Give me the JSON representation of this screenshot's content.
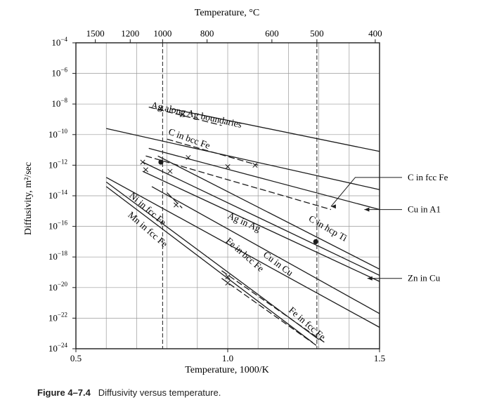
{
  "chart_data": {
    "type": "line",
    "xlabel_bottom": "Temperature, 1000/K",
    "xlabel_top": "Temperature, °C",
    "ylabel": "Diffusivity, m²/sec",
    "xlim": [
      0.5,
      1.5
    ],
    "ylim_log10": [
      -24,
      -4
    ],
    "y_scale": "log",
    "bottom_ticks": [
      {
        "value": 0.5,
        "label": "0.5"
      },
      {
        "value": 1.0,
        "label": "1.0"
      },
      {
        "value": 1.5,
        "label": "1.5"
      }
    ],
    "top_ticks": [
      {
        "celsius": 1500,
        "label": "1500"
      },
      {
        "celsius": 1200,
        "label": "1200"
      },
      {
        "celsius": 1000,
        "label": "1000"
      },
      {
        "celsius": 800,
        "label": "800"
      },
      {
        "celsius": 600,
        "label": "600"
      },
      {
        "celsius": 500,
        "label": "500"
      },
      {
        "celsius": 400,
        "label": "400"
      }
    ],
    "y_ticks": [
      {
        "exp": -4,
        "label": "10",
        "sup": "−4"
      },
      {
        "exp": -6,
        "label": "10",
        "sup": "−6"
      },
      {
        "exp": -8,
        "label": "10",
        "sup": "−8"
      },
      {
        "exp": -10,
        "label": "10",
        "sup": "−10"
      },
      {
        "exp": -12,
        "label": "10",
        "sup": "−12"
      },
      {
        "exp": -14,
        "label": "10",
        "sup": "−14"
      },
      {
        "exp": -16,
        "label": "10",
        "sup": "−16"
      },
      {
        "exp": -18,
        "label": "10",
        "sup": "−18"
      },
      {
        "exp": -20,
        "label": "10",
        "sup": "−20"
      },
      {
        "exp": -22,
        "label": "10",
        "sup": "−22"
      },
      {
        "exp": -24,
        "label": "10",
        "sup": "−24"
      }
    ],
    "reference_lines_celsius": [
      1000,
      500
    ],
    "grid": true,
    "series": [
      {
        "name": "Ag along Ag boundaries",
        "style": "solid",
        "x": [
          0.81,
          1.5
        ],
        "log10D": [
          -8.3,
          -11.1
        ]
      },
      {
        "name": "Ag along Ag boundaries",
        "style": "dashed",
        "x": [
          0.74,
          0.98
        ],
        "log10D": [
          -8.2,
          -9.4
        ]
      },
      {
        "name": "C in bcc Fe",
        "style": "dashed",
        "x": [
          0.8,
          1.1
        ],
        "log10D": [
          -10.3,
          -12.0
        ]
      },
      {
        "name": "C in bcc Fe",
        "style": "solid",
        "x": [
          0.6,
          1.5
        ],
        "log10D": [
          -9.6,
          -13.6
        ]
      },
      {
        "name": "C in fcc Fe",
        "style": "dashed",
        "x": [
          0.73,
          1.34
        ],
        "log10D": [
          -11.4,
          -14.9
        ]
      },
      {
        "name": "Cu in A1",
        "style": "solid",
        "x": [
          0.74,
          1.5
        ],
        "log10D": [
          -10.9,
          -14.9
        ]
      },
      {
        "name": "C in hcp Ti",
        "style": "solid",
        "x": [
          0.77,
          1.5
        ],
        "log10D": [
          -11.4,
          -18.8
        ]
      },
      {
        "name": "Ag in Ag",
        "style": "solid",
        "x": [
          0.72,
          1.5
        ],
        "log10D": [
          -11.8,
          -19.2
        ]
      },
      {
        "name": "Zn in Cu",
        "style": "solid",
        "x": [
          0.72,
          1.5
        ],
        "log10D": [
          -12.4,
          -19.6
        ]
      },
      {
        "name": "Cu in Cu",
        "style": "solid",
        "x": [
          0.75,
          1.5
        ],
        "log10D": [
          -13.4,
          -21.7
        ]
      },
      {
        "name": "Fe in bcc Fe",
        "style": "dashed",
        "x": [
          0.8,
          0.85
        ],
        "log10D": [
          -13.8,
          -14.8
        ]
      },
      {
        "name": "Fe in bcc Fe",
        "style": "solid",
        "x": [
          0.6,
          1.5
        ],
        "log10D": [
          -12.8,
          -22.6
        ]
      },
      {
        "name": "Fe in fcc Fe",
        "style": "dashed",
        "x": [
          0.98,
          1.32
        ],
        "log10D": [
          -18.9,
          -23.6
        ]
      },
      {
        "name": "Fe in fcc Fe",
        "style": "dashed",
        "x": [
          0.98,
          1.3
        ],
        "log10D": [
          -19.4,
          -23.9
        ]
      },
      {
        "name": "Ni in fcc Fe",
        "style": "solid",
        "x": [
          0.6,
          1.3
        ],
        "log10D": [
          -13.1,
          -23.4
        ]
      },
      {
        "name": "Mn in fcc Fe",
        "style": "solid",
        "x": [
          0.6,
          1.28
        ],
        "log10D": [
          -13.4,
          -23.6
        ]
      }
    ],
    "markers": [
      {
        "shape": "x",
        "x": 0.78,
        "log10D": [
          -8.3
        ]
      },
      {
        "shape": "x",
        "x": 0.85,
        "log10D": [
          -8.7
        ]
      },
      {
        "shape": "x",
        "x": 0.72,
        "log10D": [
          -11.8
        ]
      },
      {
        "shape": "x",
        "x": 0.73,
        "log10D": [
          -12.3
        ]
      },
      {
        "shape": "x",
        "x": 0.81,
        "log10D": [
          -12.4
        ]
      },
      {
        "shape": "x",
        "x": 0.87,
        "log10D": [
          -11.5
        ]
      },
      {
        "shape": "x",
        "x": 0.83,
        "log10D": [
          -14.6
        ]
      },
      {
        "shape": "x",
        "x": 1.0,
        "log10D": [
          -12.1
        ]
      },
      {
        "shape": "x",
        "x": 1.09,
        "log10D": [
          -12.0
        ]
      },
      {
        "shape": "x",
        "x": 1.0,
        "log10D": [
          -19.3,
          -19.7
        ]
      },
      {
        "shape": "dot",
        "x": 0.78,
        "log10D": [
          -11.8
        ]
      },
      {
        "shape": "dot",
        "x": 1.29,
        "log10D": [
          -17.0
        ]
      }
    ],
    "inline_labels": [
      {
        "text": "Ag along Ag boundaries",
        "x": 0.895,
        "log10D": [
          -8.9
        ],
        "deg": 12.5
      },
      {
        "text": "C in bcc Fe",
        "x": 0.87,
        "log10D": [
          -10.45
        ],
        "deg": 20
      },
      {
        "text": "Ag in Ag",
        "x": 1.05,
        "log10D": [
          -15.9
        ],
        "deg": 24
      },
      {
        "text": "C in hcp Ti",
        "x": 1.325,
        "log10D": [
          -16.3
        ],
        "deg": 30
      },
      {
        "text": "Cu in Cu",
        "x": 1.16,
        "log10D": [
          -18.6
        ],
        "deg": 37
      },
      {
        "text": "Fe in bcc Fe",
        "x": 1.05,
        "log10D": [
          -18.0
        ],
        "deg": 41
      },
      {
        "text": "Ni in fcc Fe",
        "x": 0.73,
        "log10D": [
          -15.0
        ],
        "deg": 41
      },
      {
        "text": "Mn in fcc Fe",
        "x": 0.73,
        "log10D": [
          -16.35
        ],
        "deg": 41
      },
      {
        "text": "Fe in fcc Fe",
        "x": 1.255,
        "log10D": [
          -22.5
        ],
        "deg": 41
      }
    ],
    "callouts": [
      {
        "text": "C in fcc Fe",
        "from_x": 1.34,
        "from_log10D": [
          -14.7
        ],
        "via_x": 1.42,
        "via_log10D": [
          -12.8
        ]
      },
      {
        "text": "Cu in A1",
        "from_x": 1.45,
        "from_log10D": [
          -14.9
        ],
        "via_x": 1.45,
        "via_log10D": [
          -14.9
        ]
      },
      {
        "text": "Zn in Cu",
        "from_x": 1.46,
        "from_log10D": [
          -19.4
        ],
        "via_x": 1.46,
        "via_log10D": [
          -19.4
        ]
      }
    ]
  },
  "caption": {
    "label": "Figure 4–7.4",
    "text": "Diffusivity versus temperature."
  }
}
